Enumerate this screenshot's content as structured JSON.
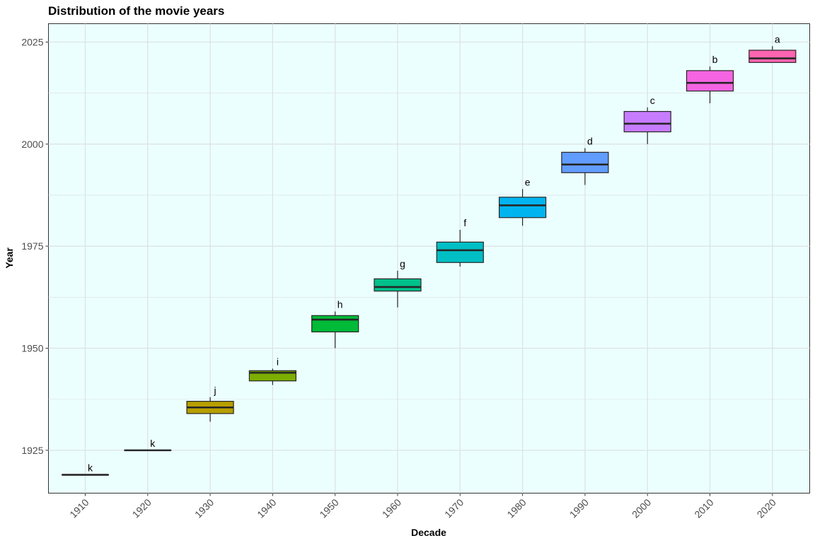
{
  "chart_data": {
    "type": "box",
    "title": "Distribution of the movie years",
    "xlabel": "Decade",
    "ylabel": "Year",
    "ylim": [
      1914.5,
      2029.5
    ],
    "yticks": [
      1925,
      1950,
      1975,
      2000,
      2025
    ],
    "grid": true,
    "legend": "none",
    "colors": {
      "panel_background": "#ecffff",
      "grid": "#dde3e3",
      "box_outline": "#262626"
    },
    "categories": [
      "1910",
      "1920",
      "1930",
      "1940",
      "1950",
      "1960",
      "1970",
      "1980",
      "1990",
      "2000",
      "2010",
      "2020"
    ],
    "boxes": [
      {
        "decade": "1910",
        "min": 1919,
        "q1": 1919,
        "median": 1919,
        "q3": 1919,
        "max": 1919,
        "label": "k",
        "color": "#f8766d"
      },
      {
        "decade": "1920",
        "min": 1925,
        "q1": 1925,
        "median": 1925,
        "q3": 1925,
        "max": 1925,
        "label": "k",
        "color": "#de8c00"
      },
      {
        "decade": "1930",
        "min": 1932,
        "q1": 1934,
        "median": 1935.5,
        "q3": 1937,
        "max": 1938,
        "label": "j",
        "color": "#b79f00"
      },
      {
        "decade": "1940",
        "min": 1941,
        "q1": 1942,
        "median": 1944,
        "q3": 1944.5,
        "max": 1945,
        "label": "i",
        "color": "#7cae00"
      },
      {
        "decade": "1950",
        "min": 1950,
        "q1": 1954,
        "median": 1957,
        "q3": 1958,
        "max": 1959,
        "label": "h",
        "color": "#00ba38"
      },
      {
        "decade": "1960",
        "min": 1960,
        "q1": 1964,
        "median": 1965,
        "q3": 1967,
        "max": 1969,
        "label": "g",
        "color": "#00c08b"
      },
      {
        "decade": "1970",
        "min": 1970,
        "q1": 1971,
        "median": 1974,
        "q3": 1976,
        "max": 1979,
        "label": "f",
        "color": "#00bfc4"
      },
      {
        "decade": "1980",
        "min": 1980,
        "q1": 1982,
        "median": 1985,
        "q3": 1987,
        "max": 1989,
        "label": "e",
        "color": "#00b4f0"
      },
      {
        "decade": "1990",
        "min": 1990,
        "q1": 1993,
        "median": 1995,
        "q3": 1998,
        "max": 1999,
        "label": "d",
        "color": "#619cff"
      },
      {
        "decade": "2000",
        "min": 2000,
        "q1": 2003,
        "median": 2005,
        "q3": 2008,
        "max": 2009,
        "label": "c",
        "color": "#c77cff"
      },
      {
        "decade": "2010",
        "min": 2010,
        "q1": 2013,
        "median": 2015,
        "q3": 2018,
        "max": 2019,
        "label": "b",
        "color": "#f564e3"
      },
      {
        "decade": "2020",
        "min": 2020,
        "q1": 2020,
        "median": 2021,
        "q3": 2023,
        "max": 2024,
        "label": "a",
        "color": "#ff64b0"
      }
    ]
  }
}
